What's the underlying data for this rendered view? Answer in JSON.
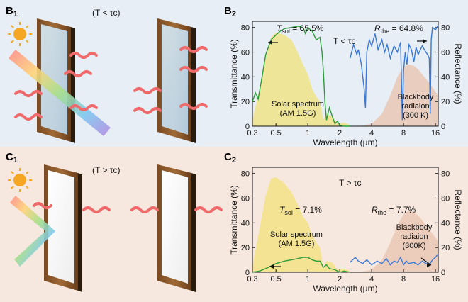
{
  "colors": {
    "top_background": "#e8eef6",
    "bottom_background": "#f7e8df",
    "transmittance_line": "#2e9b3a",
    "reflectance_line": "#3a78d6",
    "solar_fill": "#f1e27a",
    "blackbody_fill": "#e9c6b1",
    "heat_wave": "#ef6b6b",
    "sun": "#f5a623",
    "moon": "#4a90d9",
    "frame": "#8a5a2b"
  },
  "panels": {
    "B1": {
      "letter": "B",
      "number": "1",
      "condition": "(T < τc)",
      "glass": "clear"
    },
    "C1": {
      "letter": "C",
      "number": "1",
      "condition": "(T > τc)",
      "glass": "opaque"
    },
    "B2": {
      "letter": "B",
      "number": "2"
    },
    "C2": {
      "letter": "C",
      "number": "2"
    }
  },
  "chart_data": [
    {
      "id": "B2",
      "type": "line",
      "title": "",
      "condition_label": "T < τc",
      "xlabel": "Wavelength (μm)",
      "ylabel_left": "Transmittance (%)",
      "ylabel_right": "Reflectance (%)",
      "x_scale": "log",
      "xlim": [
        0.3,
        17
      ],
      "ylim": [
        0,
        85
      ],
      "x_ticks": [
        0.3,
        0.5,
        1,
        2,
        4,
        8,
        16
      ],
      "x_tick_labels": [
        "0.3",
        "0.5",
        "1",
        "2",
        "4",
        "8",
        "16"
      ],
      "y_ticks": [
        0,
        20,
        40,
        60,
        80
      ],
      "y_tick_labels": [
        "0",
        "20",
        "40",
        "60",
        "80"
      ],
      "annotations": {
        "tsol": {
          "prefix": "T",
          "sub": "sol",
          "value": " = 65.5%"
        },
        "rthe": {
          "prefix": "R",
          "sub": "the",
          "value": " = 64.8%"
        },
        "solar_label": [
          "Solar spectrum",
          "(AM 1.5G)"
        ],
        "blackbody_label": [
          "Blackbody",
          "radiaion",
          "(300 K)"
        ]
      },
      "series": [
        {
          "name": "Transmittance",
          "color": "#2e9b3a",
          "x": [
            0.3,
            0.32,
            0.34,
            0.37,
            0.4,
            0.45,
            0.5,
            0.55,
            0.6,
            0.7,
            0.8,
            0.9,
            0.95,
            1.0,
            1.1,
            1.2,
            1.3,
            1.36,
            1.4,
            1.45,
            1.5,
            1.6,
            1.7,
            1.8,
            1.9,
            2.0,
            2.2,
            2.5
          ],
          "y": [
            20,
            27,
            22,
            40,
            58,
            70,
            74,
            77,
            79,
            80,
            81,
            80,
            75,
            80,
            77,
            70,
            72,
            60,
            45,
            20,
            5,
            15,
            8,
            2,
            4,
            1,
            0,
            0
          ]
        },
        {
          "name": "Reflectance",
          "color": "#3a78d6",
          "x": [
            2.5,
            2.7,
            2.9,
            3.0,
            3.2,
            3.4,
            3.5,
            3.6,
            3.8,
            4.0,
            4.3,
            4.6,
            5.0,
            5.3,
            5.6,
            6.0,
            6.5,
            7.0,
            7.5,
            7.8,
            8.0,
            8.3,
            8.6,
            9.0,
            9.5,
            10.0,
            10.5,
            11.0,
            12.0,
            13.0,
            13.5,
            14.0,
            14.3,
            14.6,
            15.0,
            16.0,
            17.0
          ],
          "y": [
            55,
            66,
            58,
            62,
            50,
            30,
            15,
            60,
            70,
            65,
            75,
            62,
            70,
            60,
            66,
            55,
            65,
            60,
            68,
            5,
            45,
            60,
            50,
            66,
            62,
            52,
            64,
            58,
            65,
            60,
            58,
            55,
            10,
            70,
            80,
            78,
            82
          ]
        }
      ],
      "shaded_regions": [
        {
          "name": "Solar spectrum (AM 1.5G)",
          "color": "#f1e27a",
          "x": [
            0.3,
            0.35,
            0.4,
            0.45,
            0.5,
            0.6,
            0.7,
            0.8,
            0.9,
            1.0,
            1.1,
            1.2,
            1.3,
            1.4,
            1.5,
            1.7,
            1.9,
            2.2,
            2.5
          ],
          "y": [
            5,
            30,
            55,
            72,
            76,
            74,
            70,
            60,
            50,
            42,
            30,
            24,
            20,
            5,
            10,
            8,
            2,
            3,
            1
          ]
        },
        {
          "name": "Blackbody radiaion (300 K)",
          "color": "#e9c6b1",
          "x": [
            3,
            4,
            5,
            6,
            7,
            8,
            9,
            10,
            11,
            12,
            14,
            16,
            17
          ],
          "y": [
            0,
            2,
            10,
            25,
            40,
            48,
            50,
            49,
            46,
            42,
            35,
            28,
            25
          ]
        }
      ]
    },
    {
      "id": "C2",
      "type": "line",
      "title": "",
      "condition_label": "T > τc",
      "xlabel": "Wavelength (μm)",
      "ylabel_left": "Transmittance (%)",
      "ylabel_right": "Reflectance (%)",
      "x_scale": "log",
      "xlim": [
        0.3,
        17
      ],
      "ylim": [
        0,
        85
      ],
      "x_ticks": [
        0.3,
        0.5,
        1,
        2,
        4,
        8,
        16
      ],
      "x_tick_labels": [
        "0.3",
        "0.5",
        "1",
        "2",
        "4",
        "8",
        "16"
      ],
      "y_ticks": [
        0,
        20,
        40,
        60,
        80
      ],
      "y_tick_labels": [
        "0",
        "20",
        "40",
        "60",
        "80"
      ],
      "annotations": {
        "tsol": {
          "prefix": "T",
          "sub": "sol",
          "value": " = 7.1%"
        },
        "rthe": {
          "prefix": "R",
          "sub": "the",
          "value": " = 7.7%"
        },
        "solar_label": [
          "Solar spectrum",
          "(AM 1.5G)"
        ],
        "blackbody_label": [
          "Blackbody",
          "radiaion",
          "(300K)"
        ]
      },
      "series": [
        {
          "name": "Transmittance",
          "color": "#2e9b3a",
          "x": [
            0.3,
            0.35,
            0.4,
            0.45,
            0.5,
            0.6,
            0.7,
            0.8,
            0.9,
            1.0,
            1.1,
            1.2,
            1.3,
            1.4,
            1.5,
            1.6,
            1.8,
            2.0,
            2.2,
            2.5
          ],
          "y": [
            0,
            1,
            3,
            5,
            7,
            9,
            10,
            11,
            12,
            12,
            10,
            9,
            9,
            4,
            6,
            3,
            2,
            0,
            1,
            0
          ]
        },
        {
          "name": "Reflectance",
          "color": "#3a78d6",
          "x": [
            2.5,
            2.8,
            3.0,
            3.3,
            3.6,
            4.0,
            4.5,
            5.0,
            5.5,
            6.0,
            6.5,
            7.0,
            7.5,
            8.0,
            8.5,
            9.0,
            10.0,
            11.0,
            12.0,
            13.0,
            14.0,
            15.0,
            16.0,
            17.0
          ],
          "y": [
            8,
            12,
            9,
            7,
            10,
            6,
            9,
            7,
            11,
            6,
            9,
            8,
            12,
            6,
            9,
            7,
            8,
            6,
            9,
            7,
            6,
            10,
            12,
            15
          ]
        }
      ],
      "shaded_regions": [
        {
          "name": "Solar spectrum (AM 1.5G)",
          "color": "#f1e27a",
          "x": [
            0.3,
            0.35,
            0.4,
            0.45,
            0.5,
            0.6,
            0.7,
            0.8,
            0.9,
            1.0,
            1.1,
            1.2,
            1.3,
            1.4,
            1.5,
            1.7,
            1.9,
            2.2,
            2.5
          ],
          "y": [
            5,
            35,
            62,
            76,
            77,
            72,
            65,
            55,
            45,
            40,
            30,
            24,
            20,
            4,
            9,
            8,
            2,
            3,
            1
          ]
        },
        {
          "name": "Blackbody radiaion (300K)",
          "color": "#e9c6b1",
          "x": [
            3,
            4,
            5,
            6,
            7,
            8,
            9,
            10,
            11,
            12,
            14,
            16,
            17
          ],
          "y": [
            0,
            2,
            10,
            24,
            38,
            47,
            50,
            49,
            46,
            42,
            35,
            28,
            25
          ]
        }
      ]
    }
  ]
}
